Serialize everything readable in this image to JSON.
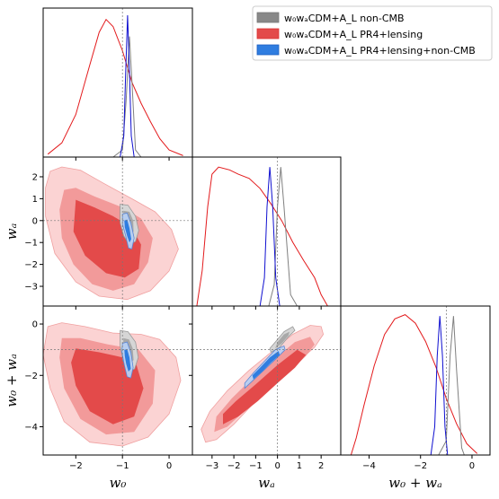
{
  "chart_data": {
    "type": "triangle-plot",
    "parameters": [
      {
        "key": "w0",
        "label": "w₀",
        "range": [
          -2.7,
          0.5
        ],
        "ticks": [
          -2,
          -1,
          0
        ]
      },
      {
        "key": "wa",
        "label": "wₐ",
        "range": [
          -3.9,
          2.9
        ],
        "ticks": [
          -3,
          -2,
          -1,
          0,
          1,
          2
        ]
      },
      {
        "key": "w0wa",
        "label": "w₀ + wₐ",
        "range": [
          -5.1,
          0.7
        ],
        "ticks": [
          -4,
          -2,
          0
        ]
      }
    ],
    "reference_lines": {
      "w0": -1,
      "wa": 0,
      "w0wa": -1
    },
    "series": [
      {
        "name": "w₀wₐCDM+A_L non-CMB",
        "color": "#808080",
        "w0_marginal": [
          [
            -1.2,
            0
          ],
          [
            -1.0,
            0.05
          ],
          [
            -0.92,
            0.4
          ],
          [
            -0.85,
            0.85
          ],
          [
            -0.8,
            0.55
          ],
          [
            -0.72,
            0.05
          ],
          [
            -0.6,
            0
          ]
        ],
        "wa_marginal": [
          [
            -0.4,
            0
          ],
          [
            -0.15,
            0.15
          ],
          [
            0.0,
            0.7
          ],
          [
            0.15,
            0.98
          ],
          [
            0.3,
            0.7
          ],
          [
            0.6,
            0.08
          ],
          [
            0.9,
            0
          ]
        ],
        "w0wa_marginal": [
          [
            -1.3,
            0
          ],
          [
            -1.0,
            0.1
          ],
          [
            -0.85,
            0.7
          ],
          [
            -0.72,
            0.98
          ],
          [
            -0.6,
            0.6
          ],
          [
            -0.4,
            0.05
          ],
          [
            -0.3,
            0
          ]
        ]
      },
      {
        "name": "w₀wₐCDM+A_L PR4+lensing",
        "color": "#e31a1c",
        "w0_marginal": [
          [
            -2.6,
            0.02
          ],
          [
            -2.3,
            0.1
          ],
          [
            -2.0,
            0.3
          ],
          [
            -1.7,
            0.65
          ],
          [
            -1.5,
            0.88
          ],
          [
            -1.35,
            0.97
          ],
          [
            -1.2,
            0.92
          ],
          [
            -1.0,
            0.75
          ],
          [
            -0.8,
            0.53
          ],
          [
            -0.6,
            0.38
          ],
          [
            -0.4,
            0.25
          ],
          [
            -0.2,
            0.13
          ],
          [
            0.0,
            0.05
          ],
          [
            0.3,
            0.01
          ]
        ],
        "wa_marginal": [
          [
            -3.7,
            0
          ],
          [
            -3.45,
            0.25
          ],
          [
            -3.2,
            0.7
          ],
          [
            -3.0,
            0.93
          ],
          [
            -2.7,
            0.98
          ],
          [
            -2.2,
            0.96
          ],
          [
            -1.8,
            0.93
          ],
          [
            -1.3,
            0.9
          ],
          [
            -0.8,
            0.83
          ],
          [
            -0.3,
            0.72
          ],
          [
            0.2,
            0.6
          ],
          [
            0.7,
            0.45
          ],
          [
            1.2,
            0.32
          ],
          [
            1.7,
            0.2
          ],
          [
            2.0,
            0.08
          ],
          [
            2.3,
            0
          ]
        ],
        "w0wa_marginal": [
          [
            -4.7,
            0
          ],
          [
            -4.5,
            0.12
          ],
          [
            -4.2,
            0.35
          ],
          [
            -3.8,
            0.63
          ],
          [
            -3.4,
            0.85
          ],
          [
            -3.0,
            0.96
          ],
          [
            -2.6,
            0.99
          ],
          [
            -2.2,
            0.93
          ],
          [
            -1.8,
            0.8
          ],
          [
            -1.4,
            0.62
          ],
          [
            -1.0,
            0.4
          ],
          [
            -0.6,
            0.22
          ],
          [
            -0.2,
            0.08
          ],
          [
            0.2,
            0.01
          ]
        ]
      },
      {
        "name": "w₀wₐCDM+A_L PR4+lensing+non-CMB",
        "color": "#1f77e8",
        "w0_marginal": [
          [
            -1.05,
            0
          ],
          [
            -0.97,
            0.15
          ],
          [
            -0.93,
            0.6
          ],
          [
            -0.89,
            1.0
          ],
          [
            -0.85,
            0.6
          ],
          [
            -0.81,
            0.15
          ],
          [
            -0.75,
            0
          ]
        ],
        "wa_marginal": [
          [
            -0.8,
            0
          ],
          [
            -0.6,
            0.2
          ],
          [
            -0.48,
            0.7
          ],
          [
            -0.35,
            0.98
          ],
          [
            -0.22,
            0.7
          ],
          [
            -0.08,
            0.2
          ],
          [
            0.1,
            0
          ]
        ],
        "w0wa_marginal": [
          [
            -1.6,
            0
          ],
          [
            -1.45,
            0.2
          ],
          [
            -1.35,
            0.7
          ],
          [
            -1.25,
            0.98
          ],
          [
            -1.15,
            0.7
          ],
          [
            -1.05,
            0.2
          ],
          [
            -0.95,
            0
          ]
        ]
      }
    ],
    "legend_position": "top-right"
  }
}
